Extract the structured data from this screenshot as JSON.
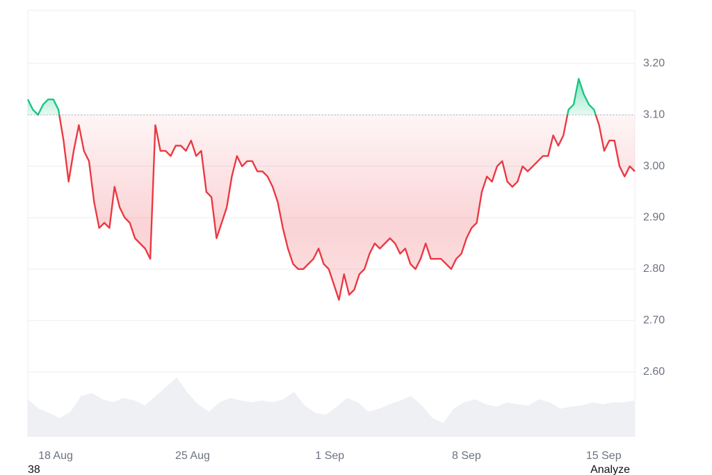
{
  "chart_data": {
    "type": "line",
    "xlim": [
      0,
      119
    ],
    "xticks": [
      {
        "value": 5.45,
        "label": "18 Aug"
      },
      {
        "value": 32.3,
        "label": "25 Aug"
      },
      {
        "value": 59.2,
        "label": "1 Sep"
      },
      {
        "value": 86.0,
        "label": "8 Sep"
      },
      {
        "value": 112.9,
        "label": "15 Sep"
      }
    ],
    "ylim": [
      2.474,
      3.303
    ],
    "yticks": [
      {
        "value": 2.6,
        "label": "2.60"
      },
      {
        "value": 2.7,
        "label": "2.70"
      },
      {
        "value": 2.8,
        "label": "2.80"
      },
      {
        "value": 2.9,
        "label": "2.90"
      },
      {
        "value": 3.0,
        "label": "3.00"
      },
      {
        "value": 3.1,
        "label": "3.10"
      },
      {
        "value": 3.2,
        "label": "3.20"
      }
    ],
    "baseline": 3.1,
    "grid": true,
    "up_color": "#16c784",
    "down_color": "#ea3943",
    "series": [
      {
        "name": "Price",
        "values": [
          3.13,
          3.11,
          3.1,
          3.12,
          3.13,
          3.13,
          3.11,
          3.05,
          2.97,
          3.03,
          3.08,
          3.03,
          3.01,
          2.93,
          2.88,
          2.89,
          2.88,
          2.96,
          2.92,
          2.9,
          2.89,
          2.86,
          2.85,
          2.84,
          2.82,
          3.08,
          3.03,
          3.03,
          3.02,
          3.04,
          3.04,
          3.03,
          3.05,
          3.02,
          3.03,
          2.95,
          2.94,
          2.86,
          2.89,
          2.92,
          2.98,
          3.02,
          3.0,
          3.01,
          3.01,
          2.99,
          2.99,
          2.98,
          2.96,
          2.93,
          2.88,
          2.84,
          2.81,
          2.8,
          2.8,
          2.81,
          2.82,
          2.84,
          2.81,
          2.8,
          2.77,
          2.74,
          2.79,
          2.75,
          2.76,
          2.79,
          2.8,
          2.83,
          2.85,
          2.84,
          2.85,
          2.86,
          2.85,
          2.83,
          2.84,
          2.81,
          2.8,
          2.82,
          2.85,
          2.82,
          2.82,
          2.82,
          2.81,
          2.8,
          2.82,
          2.83,
          2.86,
          2.88,
          2.89,
          2.95,
          2.98,
          2.97,
          3.0,
          3.01,
          2.97,
          2.96,
          2.97,
          3.0,
          2.99,
          3.0,
          3.01,
          3.02,
          3.02,
          3.06,
          3.04,
          3.06,
          3.11,
          3.12,
          3.17,
          3.14,
          3.12,
          3.11,
          3.08,
          3.03,
          3.05,
          3.05,
          3.0,
          2.98,
          3.0,
          2.99
        ]
      }
    ],
    "volume": {
      "color": "#eef0f3",
      "lim": [
        0,
        100
      ],
      "values": [
        60,
        45,
        38,
        30,
        40,
        65,
        70,
        60,
        55,
        62,
        58,
        50,
        65,
        80,
        95,
        70,
        52,
        40,
        55,
        62,
        58,
        55,
        58,
        55,
        60,
        72,
        50,
        38,
        35,
        48,
        62,
        55,
        40,
        45,
        52,
        58,
        65,
        50,
        30,
        22,
        45,
        55,
        60,
        52,
        48,
        55,
        52,
        50,
        60,
        55,
        45,
        48,
        50,
        55,
        52,
        55,
        55,
        58
      ]
    },
    "footer_left": "38",
    "footer_right": "Analyze"
  }
}
